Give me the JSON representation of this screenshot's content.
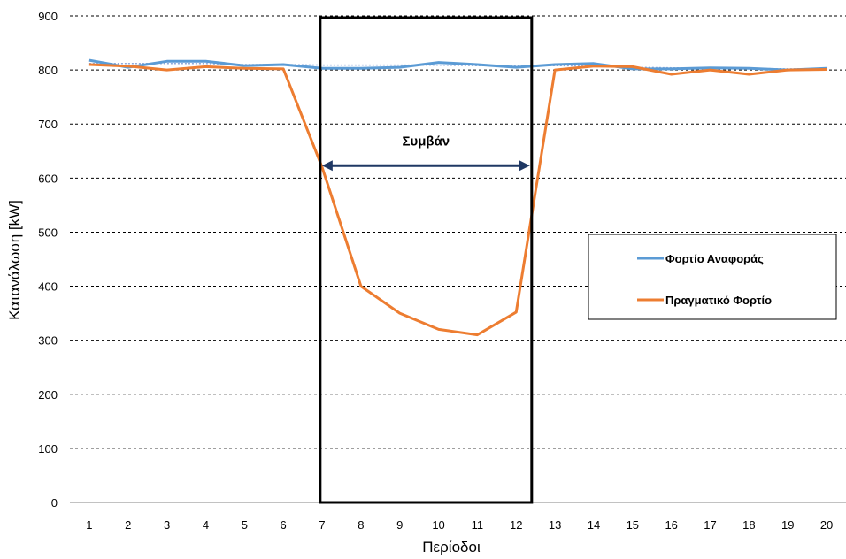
{
  "chart_data": {
    "type": "line",
    "xlabel": "Περίοδοι",
    "ylabel": "Κατανάλωση [kW]",
    "x": [
      1,
      2,
      3,
      4,
      5,
      6,
      7,
      8,
      9,
      10,
      11,
      12,
      13,
      14,
      15,
      16,
      17,
      18,
      19,
      20
    ],
    "x_tick_labels": [
      "1",
      "2",
      "3",
      "4",
      "5",
      "6",
      "7",
      "8",
      "9",
      "10",
      "11",
      "12",
      "13",
      "14",
      "15",
      "16",
      "17",
      "18",
      "19",
      "20"
    ],
    "y_tick_labels": [
      "0",
      "100",
      "200",
      "300",
      "400",
      "500",
      "600",
      "700",
      "800",
      "900"
    ],
    "ylim": [
      0,
      900
    ],
    "grid": "horizontal dashed",
    "legend_position": "right",
    "series": [
      {
        "name": "Φορτίο Αναφοράς",
        "color": "#5B9BD5",
        "values": [
          818,
          805,
          816,
          816,
          808,
          810,
          803,
          803,
          805,
          814,
          810,
          805,
          810,
          812,
          802,
          802,
          804,
          803,
          800,
          803
        ]
      },
      {
        "name": "Πραγματικό Φορτίο",
        "color": "#ED7D31",
        "values": [
          810,
          807,
          800,
          806,
          803,
          802,
          620,
          400,
          350,
          320,
          310,
          352,
          800,
          807,
          806,
          792,
          800,
          792,
          800,
          801
        ]
      },
      {
        "name": "",
        "color": "#8FAADC",
        "style": "dotted",
        "values": [
          812,
          812,
          812,
          812,
          810,
          810,
          809,
          809,
          809,
          809,
          808,
          808,
          808,
          807,
          805,
          804,
          803,
          803,
          802,
          802
        ]
      }
    ],
    "annotations": [
      {
        "text": "Συμβάν",
        "type": "event-window",
        "x_start": 6.95,
        "x_end": 12.4,
        "arrow_y": 623
      }
    ]
  }
}
